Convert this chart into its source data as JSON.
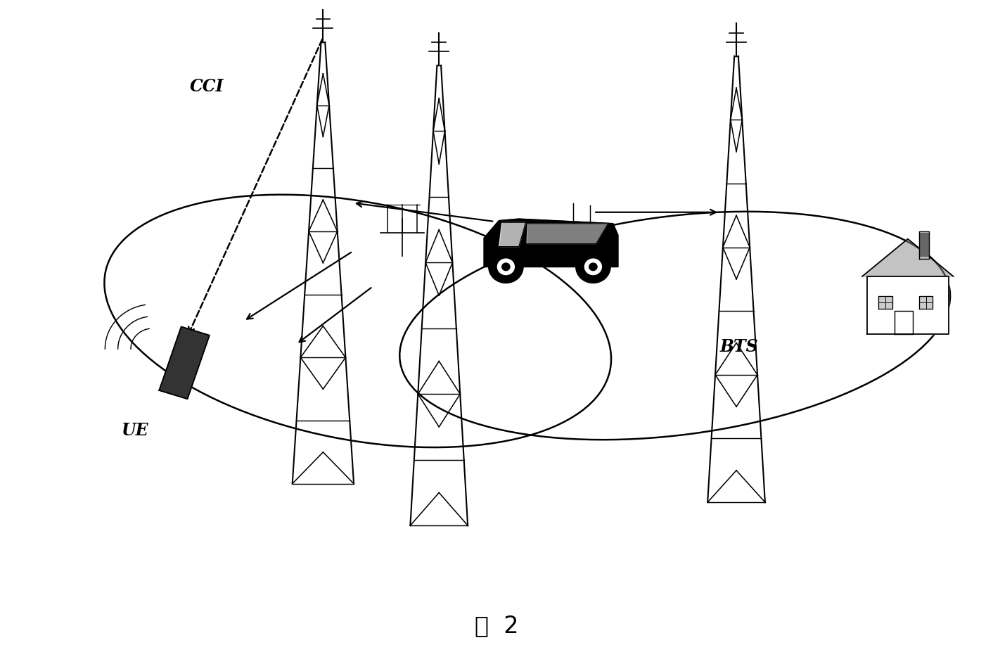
{
  "title": "图  2",
  "title_fontsize": 24,
  "background_color": "#ffffff",
  "figsize": [
    14.12,
    9.28
  ],
  "dpi": 100,
  "label_fontsize": 17,
  "label_CCI": [
    0.21,
    0.86
  ],
  "label_UE": [
    0.13,
    0.33
  ],
  "label_BTS": [
    0.665,
    0.47
  ],
  "label_fig": [
    0.5,
    0.045
  ]
}
